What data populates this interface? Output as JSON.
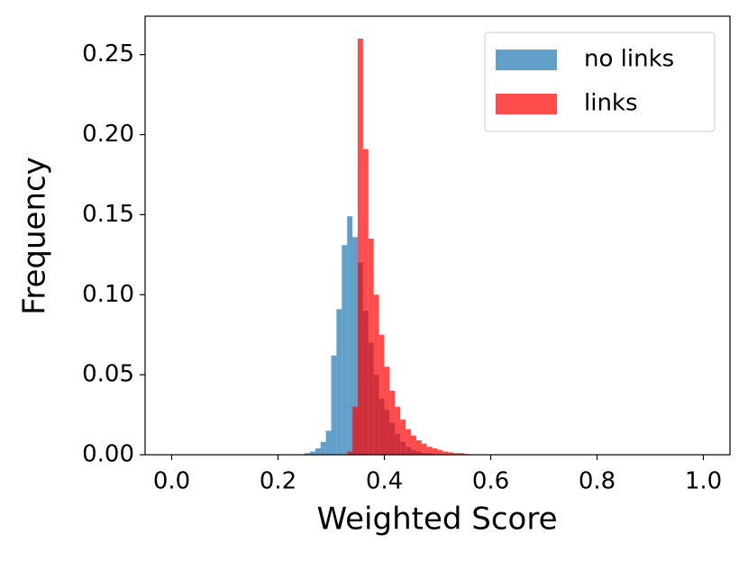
{
  "chart_data": {
    "type": "histogram",
    "xlabel": "Weighted Score",
    "ylabel": "Frequency",
    "bins": [
      0.25,
      0.26,
      0.27,
      0.28,
      0.29,
      0.3,
      0.31,
      0.32,
      0.33,
      0.34,
      0.35,
      0.36,
      0.37,
      0.38,
      0.39,
      0.4,
      0.41,
      0.42,
      0.43,
      0.44,
      0.45,
      0.46,
      0.47,
      0.48,
      0.49,
      0.5,
      0.51,
      0.52,
      0.53,
      0.54,
      0.55,
      0.56
    ],
    "series": [
      {
        "name": "no links",
        "color": "#1f77b4",
        "values": [
          0.001,
          0.002,
          0.004,
          0.008,
          0.015,
          0.062,
          0.091,
          0.131,
          0.149,
          0.136,
          0.12,
          0.09,
          0.07,
          0.05,
          0.035,
          0.028,
          0.02,
          0.013,
          0.008,
          0.005,
          0.003,
          0.002,
          0.001,
          0.001,
          0,
          0,
          0,
          0,
          0,
          0,
          0
        ]
      },
      {
        "name": "links",
        "color": "#ff0000",
        "values": [
          0,
          0,
          0,
          0,
          0,
          0,
          0,
          0,
          0.002,
          0.03,
          0.26,
          0.191,
          0.135,
          0.1,
          0.075,
          0.055,
          0.04,
          0.03,
          0.022,
          0.016,
          0.012,
          0.009,
          0.007,
          0.005,
          0.004,
          0.003,
          0.002,
          0.0015,
          0.001,
          0.001,
          0.0005
        ]
      }
    ],
    "alpha": 0.7,
    "xlim": [
      -0.05,
      1.05
    ],
    "ylim": [
      0,
      0.274
    ],
    "xticks": [
      {
        "value": 0,
        "label": "0.0"
      },
      {
        "value": 0.2,
        "label": "0.2"
      },
      {
        "value": 0.4,
        "label": "0.4"
      },
      {
        "value": 0.6,
        "label": "0.6"
      },
      {
        "value": 0.8,
        "label": "0.8"
      },
      {
        "value": 1,
        "label": "1.0"
      }
    ],
    "yticks": [
      {
        "value": 0,
        "label": "0.00"
      },
      {
        "value": 0.05,
        "label": "0.05"
      },
      {
        "value": 0.1,
        "label": "0.10"
      },
      {
        "value": 0.15,
        "label": "0.15"
      },
      {
        "value": 0.2,
        "label": "0.20"
      },
      {
        "value": 0.25,
        "label": "0.25"
      }
    ],
    "legend": "upper right",
    "grid": false
  }
}
